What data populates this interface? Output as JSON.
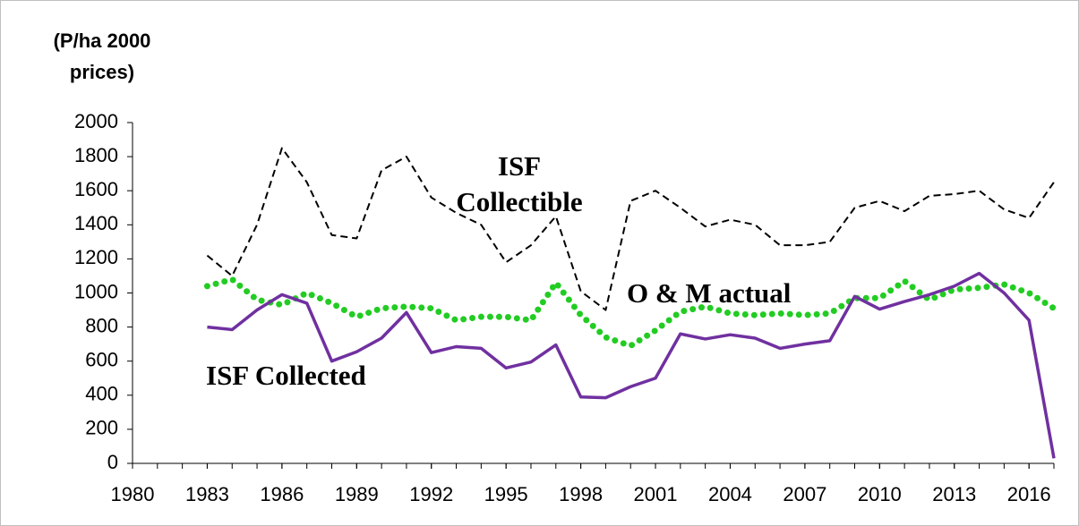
{
  "chart_data": {
    "type": "line",
    "title": "(P/ha 2000 prices)",
    "x": [
      1983,
      1984,
      1985,
      1986,
      1987,
      1988,
      1989,
      1990,
      1991,
      1992,
      1993,
      1994,
      1995,
      1996,
      1997,
      1998,
      1999,
      2000,
      2001,
      2002,
      2003,
      2004,
      2005,
      2006,
      2007,
      2008,
      2009,
      2010,
      2011,
      2012,
      2013,
      2014,
      2015,
      2016,
      2017
    ],
    "series": [
      {
        "name": "ISF Collectible",
        "color": "#000000",
        "style": "dashed",
        "values": [
          1220,
          1100,
          1400,
          1850,
          1650,
          1340,
          1320,
          1720,
          1800,
          1560,
          1470,
          1400,
          1180,
          1280,
          1450,
          1010,
          900,
          1540,
          1600,
          1500,
          1390,
          1430,
          1400,
          1280,
          1280,
          1300,
          1500,
          1540,
          1480,
          1570,
          1580,
          1600,
          1490,
          1440,
          1650
        ]
      },
      {
        "name": "O & M actual",
        "color": "#22cc22",
        "style": "dotted",
        "values": [
          1040,
          1080,
          960,
          930,
          1000,
          940,
          860,
          910,
          920,
          910,
          840,
          860,
          860,
          840,
          1060,
          870,
          740,
          690,
          780,
          890,
          920,
          880,
          870,
          880,
          870,
          880,
          970,
          970,
          1070,
          960,
          1020,
          1030,
          1050,
          1000,
          910
        ]
      },
      {
        "name": "ISF Collected",
        "color": "#7030a0",
        "style": "solid",
        "values": [
          800,
          785,
          900,
          990,
          940,
          600,
          655,
          735,
          885,
          650,
          685,
          675,
          560,
          595,
          695,
          390,
          385,
          450,
          500,
          760,
          730,
          755,
          735,
          675,
          700,
          720,
          980,
          905,
          950,
          990,
          1040,
          1115,
          1000,
          840,
          30
        ]
      }
    ],
    "xlim": [
      1980,
      2017
    ],
    "xticks": [
      1980,
      1983,
      1986,
      1989,
      1992,
      1995,
      1998,
      2001,
      2004,
      2007,
      2010,
      2013,
      2016
    ],
    "ylim": [
      0,
      2000
    ],
    "yticks": [
      0,
      200,
      400,
      600,
      800,
      1000,
      1200,
      1400,
      1600,
      1800,
      2000
    ]
  }
}
